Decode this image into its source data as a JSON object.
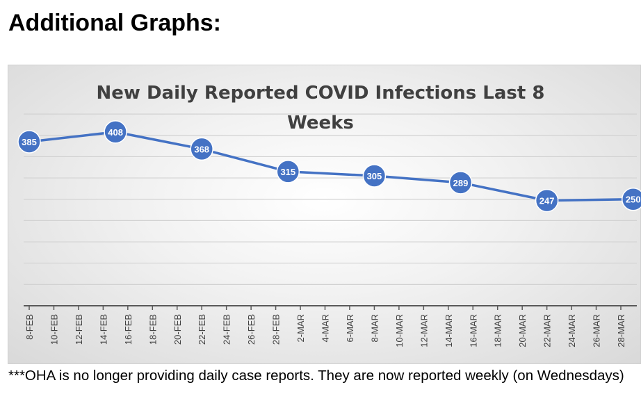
{
  "page": {
    "heading": "Additional Graphs:",
    "footnote": "***OHA is no longer providing daily case reports.  They are now reported weekly (on Wednesdays)"
  },
  "chart_data": {
    "type": "line",
    "title": "New Daily Reported COVID Infections Last 8 Weeks",
    "title_lines": [
      "New Daily Reported COVID Infections Last 8",
      "Weeks"
    ],
    "xlabel": "",
    "ylabel": "",
    "ylim": [
      0,
      460
    ],
    "y_grid_step": 50,
    "grid": true,
    "legend": "none",
    "ticks": [
      "8-FEB",
      "10-FEB",
      "12-FEB",
      "14-FEB",
      "16-FEB",
      "18-FEB",
      "20-FEB",
      "22-FEB",
      "24-FEB",
      "26-FEB",
      "28-FEB",
      "2-MAR",
      "4-MAR",
      "6-MAR",
      "8-MAR",
      "10-MAR",
      "12-MAR",
      "14-MAR",
      "16-MAR",
      "18-MAR",
      "20-MAR",
      "22-MAR",
      "24-MAR",
      "26-MAR",
      "28-MAR"
    ],
    "series": [
      {
        "name": "New Daily Reported COVID Infections",
        "color": "#4472c4",
        "points": [
          {
            "day": 0,
            "label": "8-FEB",
            "value": 385
          },
          {
            "day": 7,
            "label": "15-FEB",
            "value": 408
          },
          {
            "day": 14,
            "label": "22-FEB",
            "value": 368
          },
          {
            "day": 21,
            "label": "1-MAR",
            "value": 315
          },
          {
            "day": 28,
            "label": "8-MAR",
            "value": 305
          },
          {
            "day": 35,
            "label": "15-MAR",
            "value": 289
          },
          {
            "day": 42,
            "label": "22-MAR",
            "value": 247
          },
          {
            "day": 49,
            "label": "29-MAR",
            "value": 250
          }
        ]
      }
    ]
  }
}
